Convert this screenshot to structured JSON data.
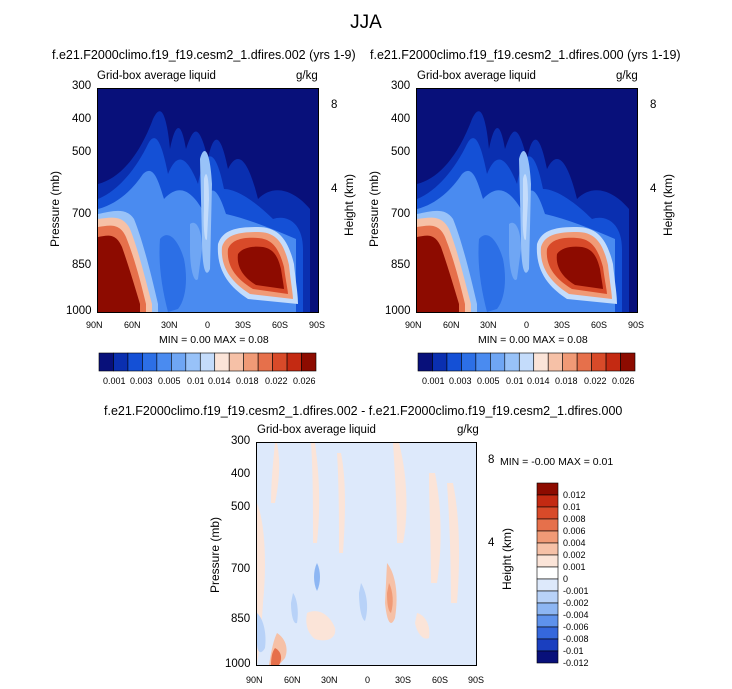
{
  "page": {
    "title": "JJA",
    "stats_top_left": "MIN =  0.00   MAX =  0.08",
    "stats_top_right": "MIN =  0.00   MAX =  0.08",
    "stats_bottom": "MIN = -0.00   MAX =  0.01"
  },
  "chart_data": [
    {
      "type": "heatmap",
      "title": "f.e21.F2000climo.f19_f19.cesm2_1.dfires.002 (yrs 1-9)",
      "left_label": "Grid-box average liquid",
      "right_label": "g/kg",
      "ylabel": "Pressure (mb)",
      "ylabel_right": "Height (km)",
      "x_ticks": [
        "90N",
        "60N",
        "30N",
        "0",
        "30S",
        "60S",
        "90S"
      ],
      "y_ticks": [
        "300",
        "400",
        "500",
        "700",
        "850",
        "1000"
      ],
      "y_ticks_right": [
        "8",
        "4"
      ],
      "colorbar_labels": [
        "0.001",
        "0.003",
        "0.005",
        "0.01",
        "0.014",
        "0.018",
        "0.022",
        "0.026"
      ]
    },
    {
      "type": "heatmap",
      "title": "f.e21.F2000climo.f19_f19.cesm2_1.dfires.000 (yrs 1-19)",
      "left_label": "Grid-box average liquid",
      "right_label": "g/kg",
      "ylabel": "Pressure (mb)",
      "ylabel_right": "Height (km)",
      "x_ticks": [
        "90N",
        "60N",
        "30N",
        "0",
        "30S",
        "60S",
        "90S"
      ],
      "y_ticks": [
        "300",
        "400",
        "500",
        "700",
        "850",
        "1000"
      ],
      "y_ticks_right": [
        "8",
        "4"
      ],
      "colorbar_labels": [
        "0.001",
        "0.003",
        "0.005",
        "0.01",
        "0.014",
        "0.018",
        "0.022",
        "0.026"
      ]
    },
    {
      "type": "heatmap",
      "title": "f.e21.F2000climo.f19_f19.cesm2_1.dfires.002 - f.e21.F2000climo.f19_f19.cesm2_1.dfires.000",
      "left_label": "Grid-box average liquid",
      "right_label": "g/kg",
      "ylabel": "Pressure (mb)",
      "ylabel_right": "Height (km)",
      "x_ticks": [
        "90N",
        "60N",
        "30N",
        "0",
        "30S",
        "60S",
        "90S"
      ],
      "y_ticks": [
        "300",
        "400",
        "500",
        "700",
        "850",
        "1000"
      ],
      "y_ticks_right": [
        "8",
        "4"
      ],
      "colorbar_labels": [
        "0.012",
        "0.01",
        "0.008",
        "0.006",
        "0.004",
        "0.002",
        "0.001",
        "0",
        "-0.001",
        "-0.002",
        "-0.004",
        "-0.006",
        "-0.008",
        "-0.01",
        "-0.012"
      ]
    }
  ],
  "colors": {
    "pos_scale": [
      "#08107a",
      "#0a2fb0",
      "#1450d6",
      "#2c6fe6",
      "#4a8bf0",
      "#6fa6f4",
      "#98c2f8",
      "#c4dcfb",
      "#fbe4d8",
      "#f6c1a7",
      "#f09a76",
      "#e6704b",
      "#d84a29",
      "#c42a12",
      "#8d0b00"
    ],
    "diff_scale": [
      "#8d0b00",
      "#c42a12",
      "#d84a29",
      "#e6704b",
      "#f09a76",
      "#f6c1a7",
      "#fbe4d8",
      "#ffffff",
      "#dde9fb",
      "#b8d2f8",
      "#8db6f3",
      "#5e92ec",
      "#3568dc",
      "#1a3fbf",
      "#08107a"
    ]
  }
}
